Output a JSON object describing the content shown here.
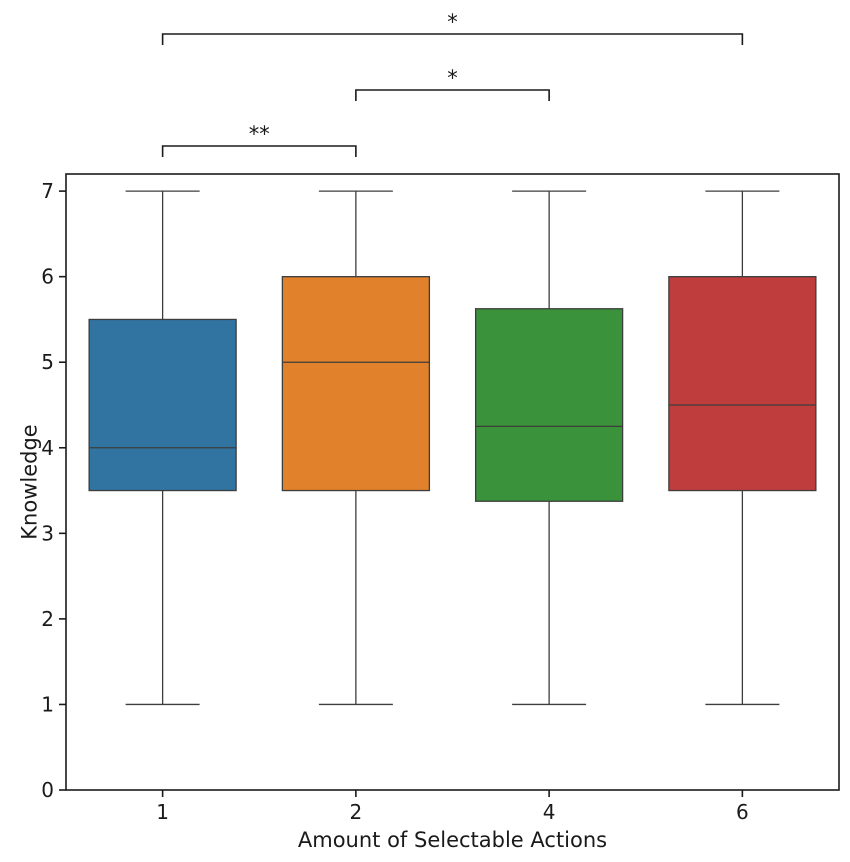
{
  "chart_data": {
    "type": "box",
    "xlabel": "Amount of Selectable Actions",
    "ylabel": "Knowledge",
    "ylim": [
      0,
      7.2
    ],
    "yticks": [
      0,
      1,
      2,
      3,
      4,
      5,
      6,
      7
    ],
    "grid": false,
    "categories": [
      "1",
      "2",
      "4",
      "6"
    ],
    "boxes": [
      {
        "category": "1",
        "whisker_low": 1,
        "q1": 3.5,
        "median": 4.0,
        "q3": 5.5,
        "whisker_high": 7,
        "color": "#3274a1"
      },
      {
        "category": "2",
        "whisker_low": 1,
        "q1": 3.5,
        "median": 5.0,
        "q3": 6.0,
        "whisker_high": 7,
        "color": "#e1812c"
      },
      {
        "category": "4",
        "whisker_low": 1,
        "q1": 3.375,
        "median": 4.25,
        "q3": 5.625,
        "whisker_high": 7,
        "color": "#3a923a"
      },
      {
        "category": "6",
        "whisker_low": 1,
        "q1": 3.5,
        "median": 4.5,
        "q3": 6.0,
        "whisker_high": 7,
        "color": "#c03d3e"
      }
    ],
    "annotations": [
      {
        "from": "1",
        "to": "2",
        "label": "**",
        "level": 1
      },
      {
        "from": "2",
        "to": "4",
        "label": "*",
        "level": 2
      },
      {
        "from": "1",
        "to": "6",
        "label": "*",
        "level": 3
      }
    ]
  }
}
